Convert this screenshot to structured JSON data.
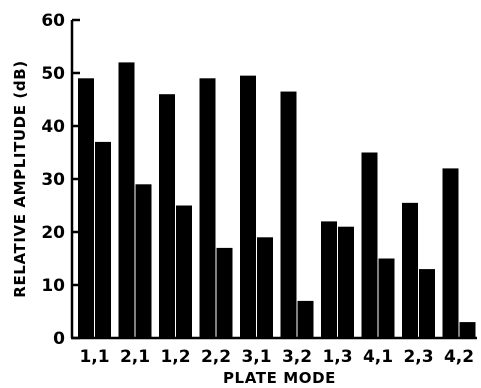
{
  "chart_data": {
    "type": "bar",
    "title": "",
    "xlabel": "PLATE MODE",
    "ylabel": "RELATIVE AMPLITUDE (dB)",
    "ylim": [
      0,
      60
    ],
    "yticks": [
      0,
      10,
      20,
      30,
      40,
      50,
      60
    ],
    "categories": [
      "1,1",
      "2,1",
      "1,2",
      "2,2",
      "3,1",
      "3,2",
      "1,3",
      "4,1",
      "2,3",
      "4,2"
    ],
    "series": [
      {
        "values": [
          49,
          52,
          46,
          49,
          49.5,
          46.5,
          22,
          35,
          25.5,
          32
        ]
      },
      {
        "values": [
          37,
          29,
          25,
          17,
          19,
          7,
          21,
          15,
          13,
          3
        ]
      }
    ],
    "bar_color": "#000000",
    "grid": false,
    "legend": "none"
  }
}
